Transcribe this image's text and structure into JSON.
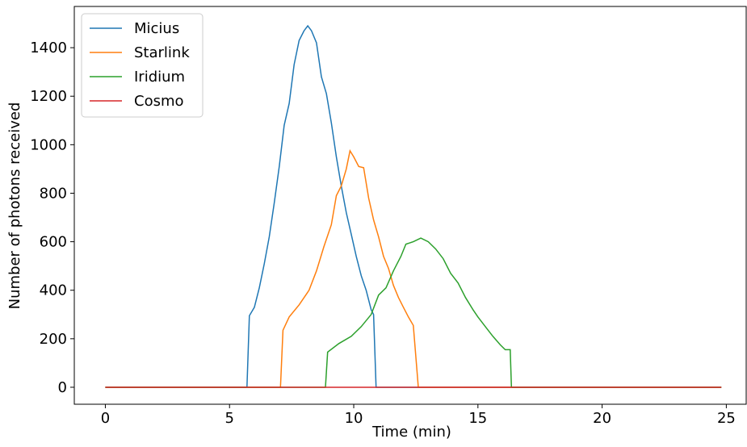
{
  "chart_data": {
    "type": "line",
    "xlabel": "Time (min)",
    "ylabel": "Number of photons received",
    "xlim": [
      -1.25,
      25.8
    ],
    "ylim": [
      -70,
      1570
    ],
    "xticks": [
      0,
      5,
      10,
      15,
      20,
      25
    ],
    "yticks": [
      0,
      200,
      400,
      600,
      800,
      1000,
      1200,
      1400
    ],
    "legend": "upper left",
    "grid": false,
    "series": [
      {
        "name": "Micius",
        "color": "#1f77b4",
        "x": [
          0,
          5.7,
          5.8,
          6.0,
          6.2,
          6.4,
          6.6,
          6.8,
          7.0,
          7.2,
          7.4,
          7.6,
          7.8,
          8.0,
          8.15,
          8.3,
          8.5,
          8.7,
          8.9,
          9.1,
          9.3,
          9.5,
          9.7,
          9.9,
          10.1,
          10.3,
          10.5,
          10.7,
          10.8,
          10.9,
          24.8
        ],
        "values": [
          0,
          0,
          295,
          330,
          410,
          510,
          620,
          760,
          910,
          1080,
          1170,
          1330,
          1430,
          1470,
          1490,
          1470,
          1420,
          1280,
          1210,
          1090,
          950,
          830,
          720,
          630,
          540,
          460,
          400,
          320,
          300,
          0,
          0
        ]
      },
      {
        "name": "Starlink",
        "color": "#ff7f0e",
        "x": [
          0,
          7.05,
          7.15,
          7.4,
          7.8,
          8.2,
          8.5,
          8.8,
          9.1,
          9.3,
          9.5,
          9.7,
          9.85,
          10.0,
          10.2,
          10.4,
          10.6,
          10.8,
          11.0,
          11.2,
          11.4,
          11.6,
          11.8,
          12.0,
          12.2,
          12.4,
          12.6,
          12.7,
          24.8
        ],
        "values": [
          0,
          0,
          235,
          290,
          340,
          400,
          480,
          580,
          670,
          790,
          830,
          900,
          975,
          950,
          910,
          905,
          780,
          690,
          620,
          540,
          490,
          420,
          370,
          330,
          290,
          255,
          0,
          0,
          0
        ]
      },
      {
        "name": "Iridium",
        "color": "#2ca02c",
        "x": [
          0,
          8.86,
          8.95,
          9.4,
          9.9,
          10.3,
          10.7,
          11.0,
          11.3,
          11.6,
          11.9,
          12.1,
          12.4,
          12.7,
          13.0,
          13.3,
          13.6,
          13.9,
          14.2,
          14.5,
          14.8,
          15.0,
          15.3,
          15.6,
          15.9,
          16.1,
          16.3,
          16.35,
          24.8
        ],
        "values": [
          0,
          0,
          145,
          180,
          210,
          250,
          300,
          380,
          410,
          480,
          540,
          590,
          600,
          615,
          600,
          570,
          530,
          470,
          430,
          370,
          320,
          290,
          250,
          210,
          175,
          155,
          155,
          0,
          0
        ]
      },
      {
        "name": "Cosmo",
        "color": "#d62728",
        "x": [
          0,
          24.8
        ],
        "values": [
          0,
          0
        ]
      }
    ]
  }
}
